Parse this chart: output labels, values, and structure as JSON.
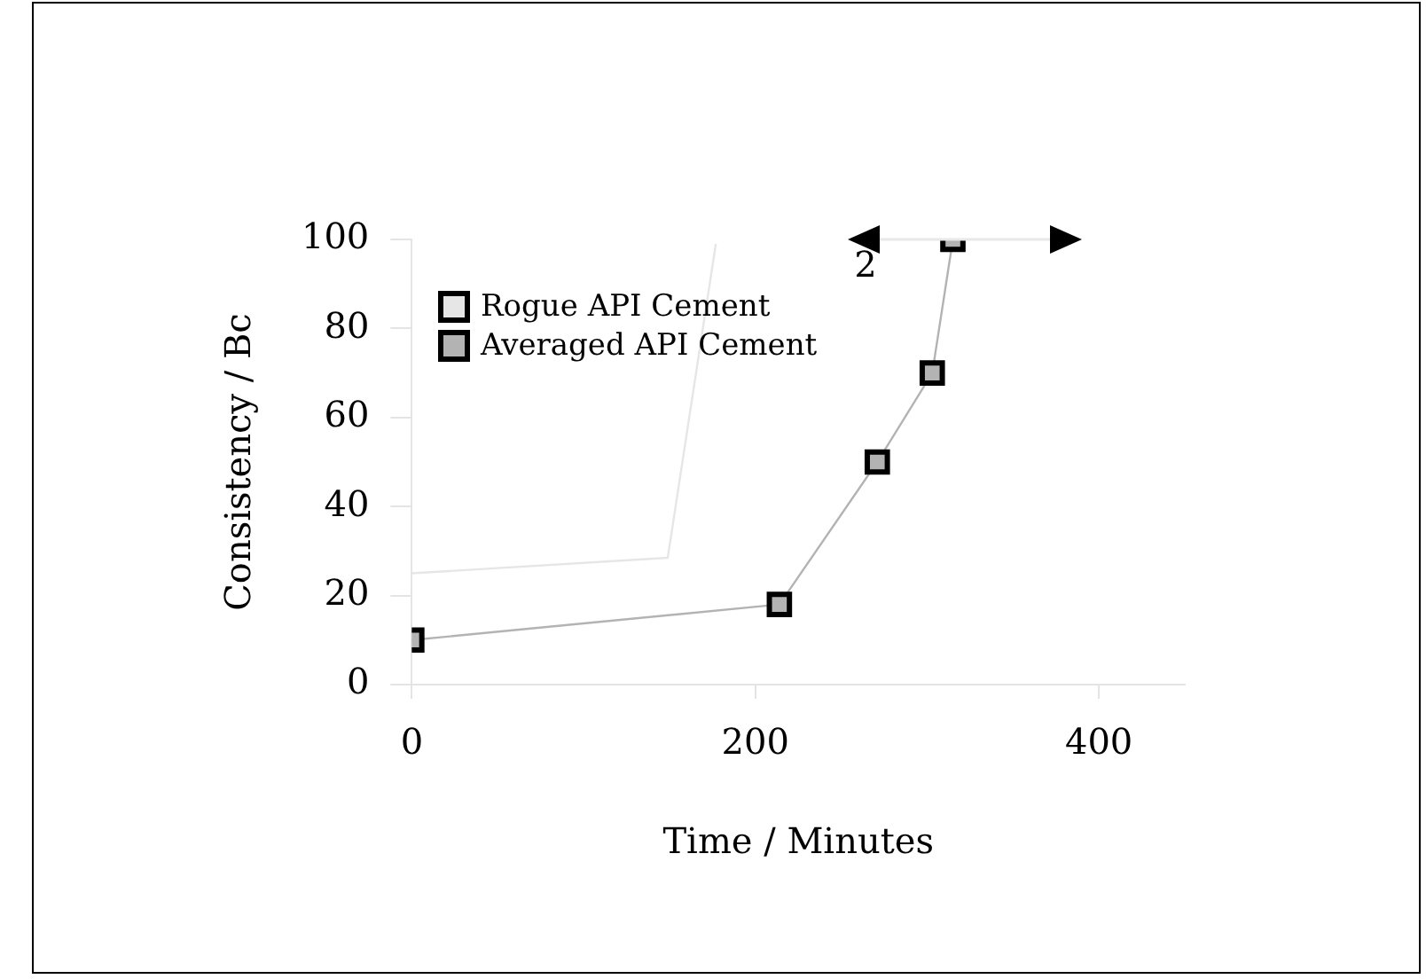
{
  "chart_data": {
    "type": "line",
    "xlabel": "Time / Minutes",
    "ylabel": "Consistency / Bc",
    "xlim": [
      0,
      450
    ],
    "ylim": [
      0,
      100
    ],
    "xticks": [
      0,
      200,
      400
    ],
    "yticks": [
      0,
      20,
      40,
      60,
      80,
      100
    ],
    "grid": false,
    "legend": "top left",
    "series": [
      {
        "name": "Rogue API Cement",
        "color": "#e6e6e6",
        "marker": "none",
        "x": [
          0,
          149,
          177
        ],
        "values": [
          25,
          28.5,
          99
        ]
      },
      {
        "name": "Averaged API Cement",
        "color": "#b3b3b3",
        "marker": "square",
        "x": [
          0,
          214,
          271,
          303,
          315
        ],
        "values": [
          10,
          18,
          50,
          70,
          100
        ]
      }
    ],
    "annotations": [
      "2"
    ]
  }
}
